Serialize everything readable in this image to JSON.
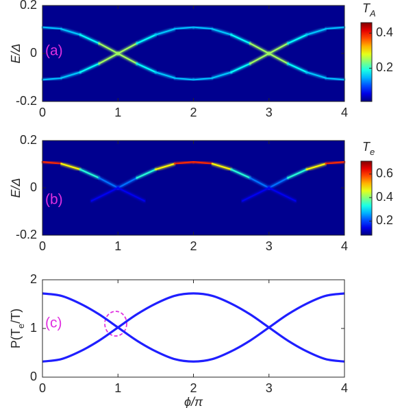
{
  "chart_data": [
    {
      "type": "heatmap",
      "panel_label": "(a)",
      "ylabel": "E/Δ",
      "xlim": [
        0,
        4
      ],
      "xticks": [
        0,
        1,
        2,
        3,
        4
      ],
      "ylim": [
        -0.2,
        0.2
      ],
      "yticks": [
        -0.2,
        0,
        0.2
      ],
      "background": "#00008f",
      "colorbar": {
        "title_parts": [
          {
            "text": "T"
          },
          {
            "text": "A",
            "subscript": true
          }
        ],
        "clim": [
          0.01,
          0.46
        ],
        "ticks": [
          0.2,
          0.4
        ]
      },
      "series": [
        {
          "x": [
            0,
            0.25,
            0.5,
            0.75,
            1,
            1.25,
            1.5,
            1.75,
            2,
            2.25,
            2.5,
            2.75,
            3,
            3.25,
            3.5,
            3.75,
            4
          ],
          "values": [
            0.11,
            0.102,
            0.078,
            0.042,
            0,
            -0.042,
            -0.078,
            -0.102,
            -0.11,
            -0.102,
            -0.078,
            -0.042,
            0,
            0.042,
            0.078,
            0.102,
            0.11
          ],
          "intensity": [
            0.15,
            0.15,
            0.16,
            0.2,
            0.3,
            0.2,
            0.16,
            0.15,
            0.15,
            0.15,
            0.16,
            0.2,
            0.3,
            0.2,
            0.16,
            0.15,
            0.15
          ]
        },
        {
          "x": [
            0,
            0.25,
            0.5,
            0.75,
            1,
            1.25,
            1.5,
            1.75,
            2,
            2.25,
            2.5,
            2.75,
            3,
            3.25,
            3.5,
            3.75,
            4
          ],
          "values": [
            -0.11,
            -0.102,
            -0.078,
            -0.042,
            0,
            0.042,
            0.078,
            0.102,
            0.11,
            0.102,
            0.078,
            0.042,
            0,
            -0.042,
            -0.078,
            -0.102,
            -0.11
          ],
          "intensity": [
            0.15,
            0.15,
            0.16,
            0.2,
            0.3,
            0.2,
            0.16,
            0.15,
            0.15,
            0.15,
            0.16,
            0.2,
            0.3,
            0.2,
            0.16,
            0.15,
            0.15
          ]
        }
      ]
    },
    {
      "type": "heatmap",
      "panel_label": "(b)",
      "ylabel": "E/Δ",
      "xlim": [
        0,
        4
      ],
      "xticks": [
        0,
        1,
        2,
        3,
        4
      ],
      "ylim": [
        -0.2,
        0.2
      ],
      "yticks": [
        -0.2,
        0,
        0.2
      ],
      "background": "#00008f",
      "colorbar": {
        "title_parts": [
          {
            "text": "T"
          },
          {
            "text": "e",
            "subscript": true
          }
        ],
        "clim": [
          0.08,
          0.71
        ],
        "ticks": [
          0.2,
          0.4,
          0.6
        ]
      },
      "series": [
        {
          "x": [
            0,
            0.25,
            0.5,
            0.75,
            1,
            1.25,
            1.5,
            1.75,
            2,
            2.25,
            2.5,
            2.75,
            3,
            3.25,
            3.5,
            3.75,
            4
          ],
          "values": [
            0.11,
            0.102,
            0.078,
            0.042,
            0,
            0.042,
            0.078,
            0.102,
            0.11,
            0.102,
            0.078,
            0.042,
            0,
            0.042,
            0.078,
            0.102,
            0.11
          ],
          "intensity": [
            0.66,
            0.55,
            0.4,
            0.28,
            0.18,
            0.28,
            0.4,
            0.55,
            0.66,
            0.55,
            0.4,
            0.28,
            0.18,
            0.28,
            0.4,
            0.55,
            0.66
          ]
        },
        {
          "x": [
            0.65,
            1,
            1.35,
            2,
            2.65,
            3,
            3.35
          ],
          "values": [
            -0.055,
            0,
            -0.055,
            null,
            -0.055,
            0,
            -0.055
          ],
          "intensity": [
            0.12,
            0.18,
            0.12,
            null,
            0.12,
            0.18,
            0.12
          ]
        }
      ]
    },
    {
      "type": "line",
      "panel_label": "(c)",
      "ylabel_parts": [
        {
          "text": "P(T"
        },
        {
          "text": "e",
          "subscript": true
        },
        {
          "text": "/T)"
        }
      ],
      "xlabel": "ϕ/π",
      "xlim": [
        0,
        4
      ],
      "xticks": [
        0,
        1,
        2,
        3,
        4
      ],
      "ylim": [
        0,
        2
      ],
      "yticks": [
        0,
        1,
        2
      ],
      "series": [
        {
          "color": "#1f1fff",
          "x": [
            0,
            0.25,
            0.5,
            0.75,
            1,
            1.25,
            1.5,
            1.75,
            2,
            2.25,
            2.5,
            2.75,
            3,
            3.25,
            3.5,
            3.75,
            4
          ],
          "values": [
            1.72,
            1.67,
            1.51,
            1.29,
            1.02,
            0.75,
            0.53,
            0.37,
            0.32,
            0.37,
            0.53,
            0.75,
            1.02,
            1.29,
            1.51,
            1.67,
            1.72
          ]
        },
        {
          "color": "#1f1fff",
          "x": [
            0,
            0.25,
            0.5,
            0.75,
            1,
            1.25,
            1.5,
            1.75,
            2,
            2.25,
            2.5,
            2.75,
            3,
            3.25,
            3.5,
            3.75,
            4
          ],
          "values": [
            0.32,
            0.37,
            0.53,
            0.75,
            1.02,
            1.29,
            1.51,
            1.67,
            1.72,
            1.67,
            1.51,
            1.29,
            1.02,
            0.75,
            0.53,
            0.37,
            0.32
          ]
        }
      ]
    }
  ]
}
